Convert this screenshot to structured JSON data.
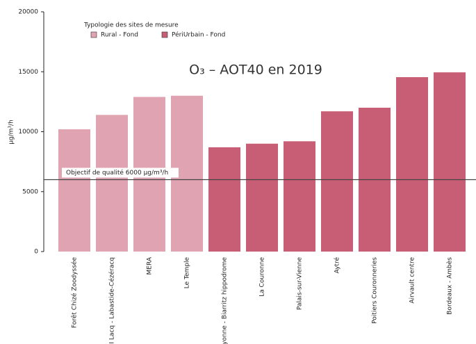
{
  "chart_data": {
    "type": "bar",
    "title": "O₃ – AOT40 en 2019",
    "y_label": "µg/m³/h",
    "legend_title": "Typologie des sites de mesure",
    "categories": [
      "Forêt Chizé Zoodyssée",
      "ZI Lacq - Labastide-Cézéracq",
      "MERA",
      "Le Temple",
      "Bayonne - Biarritz hippodrome",
      "La Couronne",
      "Palais-sur-Vienne",
      "Aytré",
      "Poitiers Couronneries",
      "Airvault centre",
      "Bordeaux - Ambès"
    ],
    "series": [
      {
        "name": "Rural - Fond",
        "color": "#e0a3b2",
        "values": [
          10200,
          11400,
          12900,
          13000,
          null,
          null,
          null,
          null,
          null,
          null,
          null
        ]
      },
      {
        "name": "PériUrbain - Fond",
        "color": "#c85e75",
        "values": [
          null,
          null,
          null,
          null,
          8700,
          9000,
          9200,
          11700,
          12000,
          14550,
          14950
        ]
      }
    ],
    "ylim": [
      0,
      20000
    ],
    "yticks": [
      0,
      5000,
      10000,
      15000,
      20000
    ],
    "threshold": {
      "value": 6000,
      "label": "Objectif de qualité 6000 µg/m³/h",
      "color": "#444"
    },
    "legend": "top-left"
  }
}
